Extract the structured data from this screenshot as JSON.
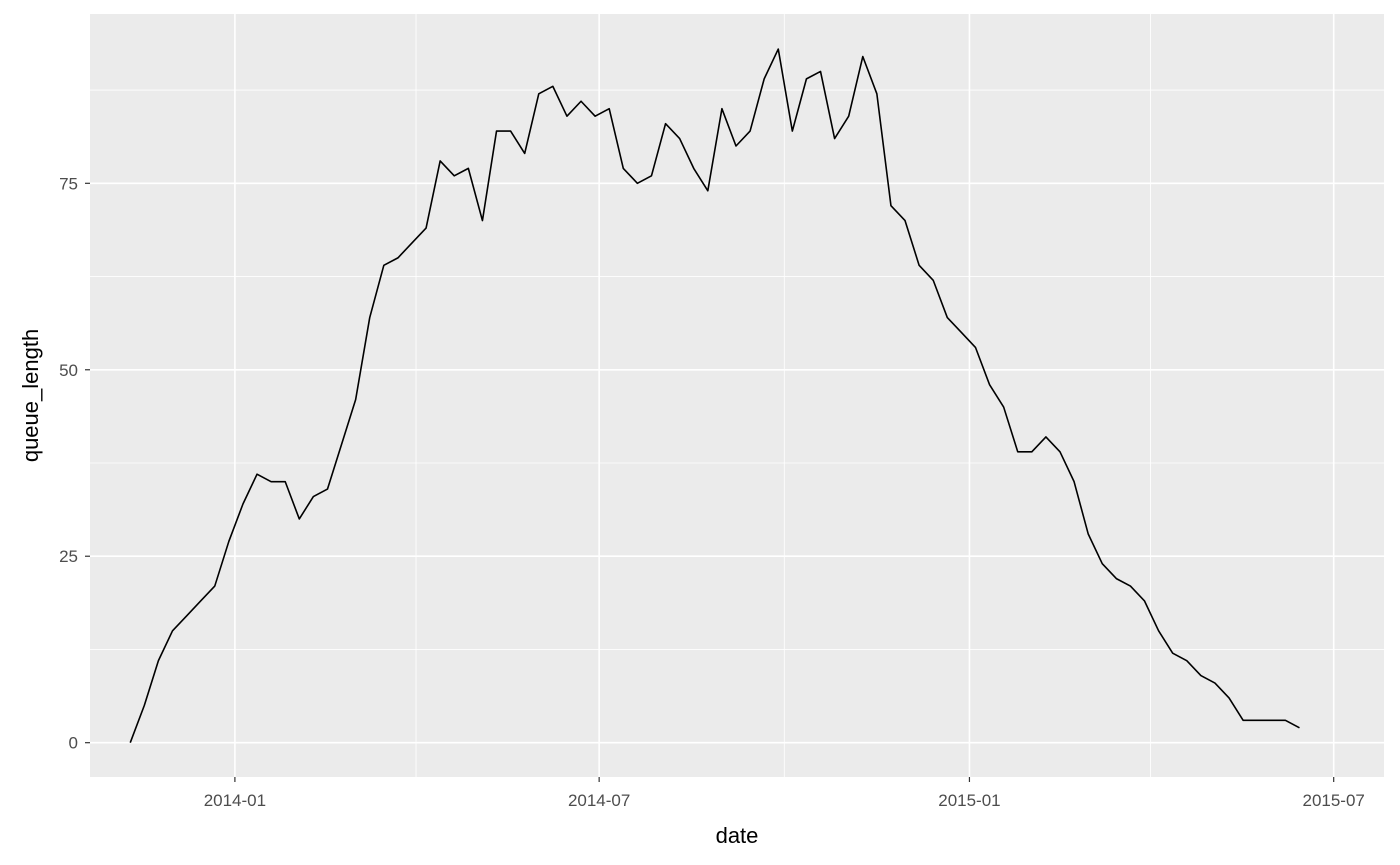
{
  "chart_data": {
    "type": "line",
    "title": "",
    "xlabel": "date",
    "ylabel": "queue_length",
    "x_scale": "date",
    "xlim": [
      "2013-10-21",
      "2015-07-26"
    ],
    "ylim": [
      -4.6,
      97.7
    ],
    "x_ticks": [
      {
        "value": "2014-01-01",
        "label": "2014-01"
      },
      {
        "value": "2014-07-01",
        "label": "2014-07"
      },
      {
        "value": "2015-01-01",
        "label": "2015-01"
      },
      {
        "value": "2015-07-01",
        "label": "2015-07"
      }
    ],
    "x_minor_ticks": [
      "2014-04-01",
      "2014-10-01",
      "2015-04-01"
    ],
    "y_ticks": [
      0,
      25,
      50,
      75
    ],
    "y_minor_ticks": [
      12.5,
      37.5,
      62.5,
      87.5
    ],
    "grid": true,
    "background": "#ebebeb",
    "grid_color": "#ffffff",
    "line_color": "#000000",
    "series": [
      {
        "x": [
          "2013-11-10",
          "2013-11-17",
          "2013-11-24",
          "2013-12-01",
          "2013-12-08",
          "2013-12-15",
          "2013-12-22",
          "2013-12-29",
          "2014-01-05",
          "2014-01-12",
          "2014-01-19",
          "2014-01-26",
          "2014-02-02",
          "2014-02-09",
          "2014-02-16",
          "2014-02-23",
          "2014-03-02",
          "2014-03-09",
          "2014-03-16",
          "2014-03-23",
          "2014-03-30",
          "2014-04-06",
          "2014-04-13",
          "2014-04-20",
          "2014-04-27",
          "2014-05-04",
          "2014-05-11",
          "2014-05-18",
          "2014-05-25",
          "2014-06-01",
          "2014-06-08",
          "2014-06-15",
          "2014-06-22",
          "2014-06-29",
          "2014-07-06",
          "2014-07-13",
          "2014-07-20",
          "2014-07-27",
          "2014-08-03",
          "2014-08-10",
          "2014-08-17",
          "2014-08-24",
          "2014-08-31",
          "2014-09-07",
          "2014-09-14",
          "2014-09-21",
          "2014-09-28",
          "2014-10-05",
          "2014-10-12",
          "2014-10-19",
          "2014-10-26",
          "2014-11-02",
          "2014-11-09",
          "2014-11-16",
          "2014-11-23",
          "2014-11-30",
          "2014-12-07",
          "2014-12-14",
          "2014-12-21",
          "2014-12-28",
          "2015-01-04",
          "2015-01-11",
          "2015-01-18",
          "2015-01-25",
          "2015-02-01",
          "2015-02-08",
          "2015-02-15",
          "2015-02-22",
          "2015-03-01",
          "2015-03-08",
          "2015-03-15",
          "2015-03-22",
          "2015-03-29",
          "2015-04-05",
          "2015-04-12",
          "2015-04-19",
          "2015-04-26",
          "2015-05-03",
          "2015-05-10",
          "2015-05-17",
          "2015-05-24",
          "2015-05-31",
          "2015-06-07",
          "2015-06-14"
        ],
        "y": [
          0,
          5,
          11,
          15,
          17,
          19,
          21,
          27,
          32,
          36,
          35,
          35,
          30,
          33,
          34,
          40,
          46,
          57,
          64,
          65,
          67,
          69,
          78,
          76,
          77,
          70,
          82,
          82,
          79,
          87,
          88,
          84,
          86,
          84,
          85,
          77,
          75,
          76,
          83,
          81,
          77,
          74,
          85,
          80,
          82,
          89,
          93,
          82,
          89,
          90,
          81,
          84,
          92,
          87,
          72,
          70,
          64,
          62,
          57,
          55,
          53,
          48,
          45,
          39,
          39,
          41,
          39,
          35,
          28,
          24,
          22,
          21,
          19,
          15,
          12,
          11,
          9,
          8,
          6,
          3,
          3,
          3,
          3,
          2
        ]
      }
    ]
  }
}
